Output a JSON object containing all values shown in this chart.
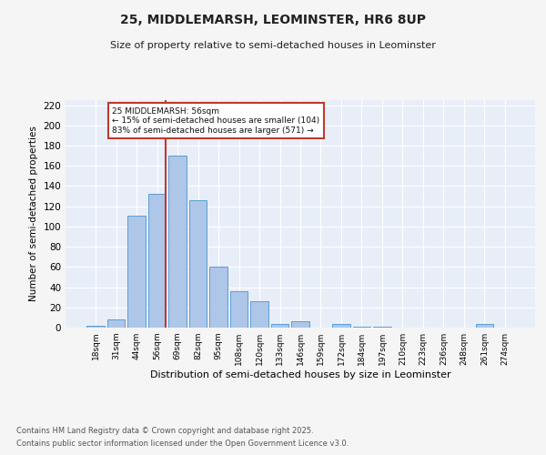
{
  "title1": "25, MIDDLEMARSH, LEOMINSTER, HR6 8UP",
  "title2": "Size of property relative to semi-detached houses in Leominster",
  "xlabel": "Distribution of semi-detached houses by size in Leominster",
  "ylabel": "Number of semi-detached properties",
  "footer1": "Contains HM Land Registry data © Crown copyright and database right 2025.",
  "footer2": "Contains public sector information licensed under the Open Government Licence v3.0.",
  "annotation_title": "25 MIDDLEMARSH: 56sqm",
  "annotation_line2": "← 15% of semi-detached houses are smaller (104)",
  "annotation_line3": "83% of semi-detached houses are larger (571) →",
  "bar_labels": [
    "18sqm",
    "31sqm",
    "44sqm",
    "56sqm",
    "69sqm",
    "82sqm",
    "95sqm",
    "108sqm",
    "120sqm",
    "133sqm",
    "146sqm",
    "159sqm",
    "172sqm",
    "184sqm",
    "197sqm",
    "210sqm",
    "223sqm",
    "236sqm",
    "248sqm",
    "261sqm",
    "274sqm"
  ],
  "bar_values": [
    2,
    8,
    111,
    132,
    170,
    126,
    60,
    36,
    26,
    4,
    6,
    0,
    4,
    1,
    1,
    0,
    0,
    0,
    0,
    4,
    0
  ],
  "bar_color": "#aec6e8",
  "bar_edge_color": "#5a9fd4",
  "vline_index": 3,
  "vline_color": "#c0392b",
  "ylim": [
    0,
    225
  ],
  "yticks": [
    0,
    20,
    40,
    60,
    80,
    100,
    120,
    140,
    160,
    180,
    200,
    220
  ],
  "bg_color": "#e8eef8",
  "fig_bg_color": "#f5f5f5",
  "annotation_box_color": "#ffffff",
  "annotation_box_edge": "#c0392b"
}
